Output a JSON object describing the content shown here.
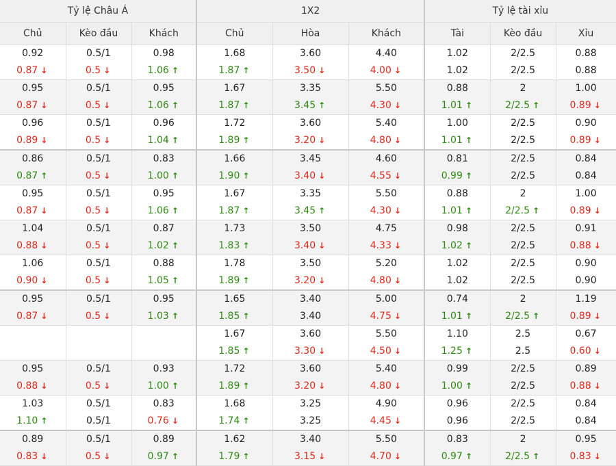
{
  "headers": {
    "groups": [
      "Tỷ lệ Châu Á",
      "1X2",
      "Tỷ lệ tài xỉu"
    ],
    "columns": [
      "Chủ",
      "Kèo đầu",
      "Khách",
      "Chủ",
      "Hòa",
      "Khách",
      "Tài",
      "Kèo đầu",
      "Xỉu"
    ]
  },
  "icons": {
    "up": "arrow-up-icon",
    "down": "arrow-down-icon"
  },
  "colors": {
    "up": "#2e8b12",
    "down": "#e0291c",
    "header_bg": "#f0f0f0",
    "stripe_bg": "#f3f3f3"
  },
  "rows": [
    {
      "sep": false,
      "cells": [
        {
          "a": "0.92",
          "b": "0.87",
          "d": "down"
        },
        {
          "a": "0.5/1",
          "b": "0.5",
          "d": "down"
        },
        {
          "a": "0.98",
          "b": "1.06",
          "d": "up"
        },
        {
          "a": "1.68",
          "b": "1.87",
          "d": "up"
        },
        {
          "a": "3.60",
          "b": "3.50",
          "d": "down"
        },
        {
          "a": "4.40",
          "b": "4.00",
          "d": "down"
        },
        {
          "a": "1.02",
          "b": "1.02",
          "d": ""
        },
        {
          "a": "2/2.5",
          "b": "2/2.5",
          "d": ""
        },
        {
          "a": "0.88",
          "b": "0.88",
          "d": ""
        }
      ]
    },
    {
      "sep": false,
      "cells": [
        {
          "a": "0.95",
          "b": "0.87",
          "d": "down"
        },
        {
          "a": "0.5/1",
          "b": "0.5",
          "d": "down"
        },
        {
          "a": "0.95",
          "b": "1.06",
          "d": "up"
        },
        {
          "a": "1.67",
          "b": "1.87",
          "d": "up"
        },
        {
          "a": "3.35",
          "b": "3.45",
          "d": "up"
        },
        {
          "a": "5.50",
          "b": "4.30",
          "d": "down"
        },
        {
          "a": "0.88",
          "b": "1.01",
          "d": "up"
        },
        {
          "a": "2",
          "b": "2/2.5",
          "d": "up"
        },
        {
          "a": "1.00",
          "b": "0.89",
          "d": "down"
        }
      ]
    },
    {
      "sep": false,
      "cells": [
        {
          "a": "0.96",
          "b": "0.89",
          "d": "down"
        },
        {
          "a": "0.5/1",
          "b": "0.5",
          "d": "down"
        },
        {
          "a": "0.96",
          "b": "1.04",
          "d": "up"
        },
        {
          "a": "1.72",
          "b": "1.89",
          "d": "up"
        },
        {
          "a": "3.60",
          "b": "3.20",
          "d": "down"
        },
        {
          "a": "5.40",
          "b": "4.80",
          "d": "down"
        },
        {
          "a": "1.00",
          "b": "1.01",
          "d": "up"
        },
        {
          "a": "2/2.5",
          "b": "2/2.5",
          "d": ""
        },
        {
          "a": "0.90",
          "b": "0.89",
          "d": "down"
        }
      ]
    },
    {
      "sep": true,
      "cells": [
        {
          "a": "0.86",
          "b": "0.87",
          "d": "up"
        },
        {
          "a": "0.5/1",
          "b": "0.5",
          "d": "down"
        },
        {
          "a": "0.83",
          "b": "1.00",
          "d": "up"
        },
        {
          "a": "1.66",
          "b": "1.90",
          "d": "up"
        },
        {
          "a": "3.45",
          "b": "3.40",
          "d": "down"
        },
        {
          "a": "4.60",
          "b": "4.55",
          "d": "down"
        },
        {
          "a": "0.81",
          "b": "0.99",
          "d": "up"
        },
        {
          "a": "2/2.5",
          "b": "2/2.5",
          "d": ""
        },
        {
          "a": "0.84",
          "b": "0.84",
          "d": ""
        }
      ]
    },
    {
      "sep": false,
      "cells": [
        {
          "a": "0.95",
          "b": "0.87",
          "d": "down"
        },
        {
          "a": "0.5/1",
          "b": "0.5",
          "d": "down"
        },
        {
          "a": "0.95",
          "b": "1.06",
          "d": "up"
        },
        {
          "a": "1.67",
          "b": "1.87",
          "d": "up"
        },
        {
          "a": "3.35",
          "b": "3.45",
          "d": "up"
        },
        {
          "a": "5.50",
          "b": "4.30",
          "d": "down"
        },
        {
          "a": "0.88",
          "b": "1.01",
          "d": "up"
        },
        {
          "a": "2",
          "b": "2/2.5",
          "d": "up"
        },
        {
          "a": "1.00",
          "b": "0.89",
          "d": "down"
        }
      ]
    },
    {
      "sep": false,
      "cells": [
        {
          "a": "1.04",
          "b": "0.88",
          "d": "down"
        },
        {
          "a": "0.5/1",
          "b": "0.5",
          "d": "down"
        },
        {
          "a": "0.87",
          "b": "1.02",
          "d": "up"
        },
        {
          "a": "1.73",
          "b": "1.83",
          "d": "up"
        },
        {
          "a": "3.50",
          "b": "3.40",
          "d": "down"
        },
        {
          "a": "4.75",
          "b": "4.33",
          "d": "down"
        },
        {
          "a": "0.98",
          "b": "1.02",
          "d": "up"
        },
        {
          "a": "2/2.5",
          "b": "2/2.5",
          "d": ""
        },
        {
          "a": "0.91",
          "b": "0.88",
          "d": "down"
        }
      ]
    },
    {
      "sep": false,
      "cells": [
        {
          "a": "1.06",
          "b": "0.90",
          "d": "down"
        },
        {
          "a": "0.5/1",
          "b": "0.5",
          "d": "down"
        },
        {
          "a": "0.88",
          "b": "1.05",
          "d": "up"
        },
        {
          "a": "1.78",
          "b": "1.89",
          "d": "up"
        },
        {
          "a": "3.50",
          "b": "3.20",
          "d": "down"
        },
        {
          "a": "5.20",
          "b": "4.80",
          "d": "down"
        },
        {
          "a": "1.02",
          "b": "1.02",
          "d": ""
        },
        {
          "a": "2/2.5",
          "b": "2/2.5",
          "d": ""
        },
        {
          "a": "0.90",
          "b": "0.90",
          "d": ""
        }
      ]
    },
    {
      "sep": true,
      "cells": [
        {
          "a": "0.95",
          "b": "0.87",
          "d": "down"
        },
        {
          "a": "0.5/1",
          "b": "0.5",
          "d": "down"
        },
        {
          "a": "0.95",
          "b": "1.03",
          "d": "up"
        },
        {
          "a": "1.65",
          "b": "1.85",
          "d": "up"
        },
        {
          "a": "3.40",
          "b": "3.40",
          "d": ""
        },
        {
          "a": "5.00",
          "b": "4.75",
          "d": "down"
        },
        {
          "a": "0.74",
          "b": "1.01",
          "d": "up"
        },
        {
          "a": "2",
          "b": "2/2.5",
          "d": "up"
        },
        {
          "a": "1.19",
          "b": "0.89",
          "d": "down"
        }
      ]
    },
    {
      "sep": false,
      "cells": [
        {
          "a": "",
          "b": "",
          "d": ""
        },
        {
          "a": "",
          "b": "",
          "d": ""
        },
        {
          "a": "",
          "b": "",
          "d": ""
        },
        {
          "a": "1.67",
          "b": "1.85",
          "d": "up"
        },
        {
          "a": "3.60",
          "b": "3.30",
          "d": "down"
        },
        {
          "a": "5.50",
          "b": "4.50",
          "d": "down"
        },
        {
          "a": "1.10",
          "b": "1.25",
          "d": "up"
        },
        {
          "a": "2.5",
          "b": "2.5",
          "d": ""
        },
        {
          "a": "0.67",
          "b": "0.60",
          "d": "down"
        }
      ]
    },
    {
      "sep": false,
      "cells": [
        {
          "a": "0.95",
          "b": "0.88",
          "d": "down"
        },
        {
          "a": "0.5/1",
          "b": "0.5",
          "d": "down"
        },
        {
          "a": "0.93",
          "b": "1.00",
          "d": "up"
        },
        {
          "a": "1.72",
          "b": "1.89",
          "d": "up"
        },
        {
          "a": "3.60",
          "b": "3.20",
          "d": "down"
        },
        {
          "a": "5.40",
          "b": "4.80",
          "d": "down"
        },
        {
          "a": "0.99",
          "b": "1.00",
          "d": "up"
        },
        {
          "a": "2/2.5",
          "b": "2/2.5",
          "d": ""
        },
        {
          "a": "0.89",
          "b": "0.88",
          "d": "down"
        }
      ]
    },
    {
      "sep": false,
      "cells": [
        {
          "a": "1.03",
          "b": "1.10",
          "d": "up"
        },
        {
          "a": "0.5/1",
          "b": "0.5/1",
          "d": ""
        },
        {
          "a": "0.83",
          "b": "0.76",
          "d": "down"
        },
        {
          "a": "1.68",
          "b": "1.74",
          "d": "up"
        },
        {
          "a": "3.25",
          "b": "3.25",
          "d": ""
        },
        {
          "a": "4.90",
          "b": "4.45",
          "d": "down"
        },
        {
          "a": "0.96",
          "b": "0.96",
          "d": ""
        },
        {
          "a": "2/2.5",
          "b": "2/2.5",
          "d": ""
        },
        {
          "a": "0.84",
          "b": "0.84",
          "d": ""
        }
      ]
    },
    {
      "sep": true,
      "cells": [
        {
          "a": "0.89",
          "b": "0.83",
          "d": "down"
        },
        {
          "a": "0.5/1",
          "b": "0.5",
          "d": "down"
        },
        {
          "a": "0.89",
          "b": "0.97",
          "d": "up"
        },
        {
          "a": "1.62",
          "b": "1.79",
          "d": "up"
        },
        {
          "a": "3.40",
          "b": "3.15",
          "d": "down"
        },
        {
          "a": "5.50",
          "b": "4.70",
          "d": "down"
        },
        {
          "a": "0.83",
          "b": "0.97",
          "d": "up"
        },
        {
          "a": "2",
          "b": "2/2.5",
          "d": "up"
        },
        {
          "a": "0.95",
          "b": "0.83",
          "d": "down"
        }
      ]
    }
  ]
}
